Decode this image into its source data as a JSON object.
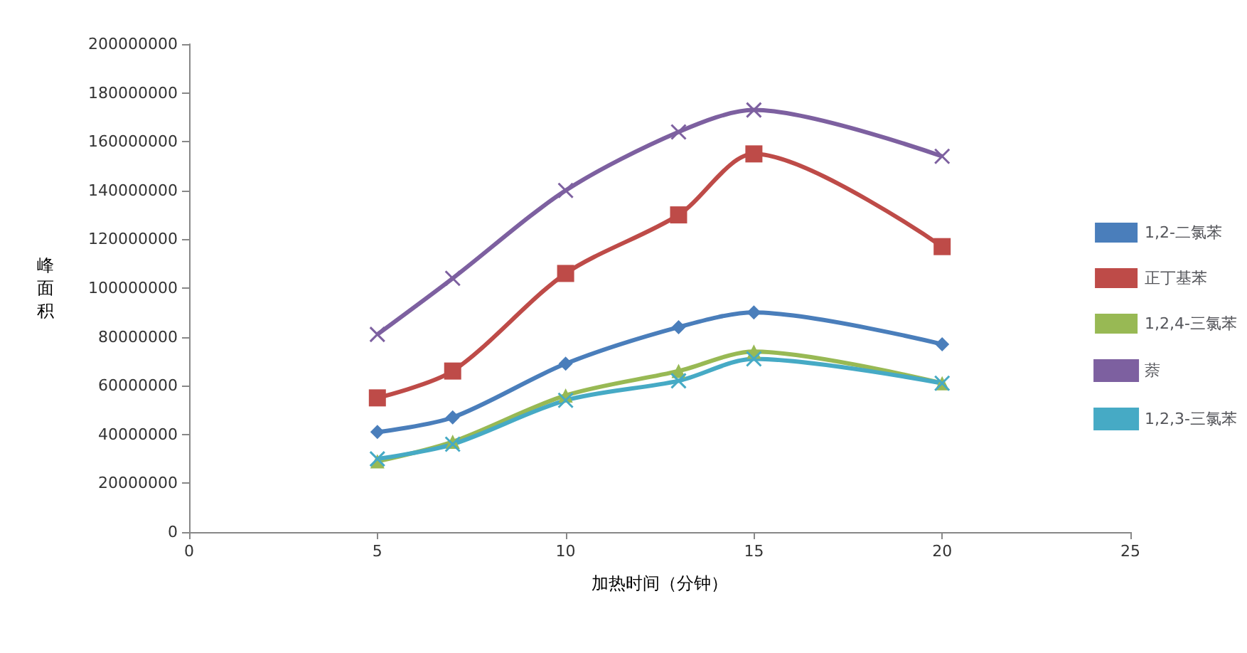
{
  "chart_data": {
    "type": "line",
    "xlabel": "加热时间（分钟）",
    "ylabel": "峰面积",
    "x": [
      5,
      7,
      10,
      13,
      15,
      20
    ],
    "xlim": [
      0,
      25
    ],
    "xticks": [
      0,
      5,
      10,
      15,
      20,
      25
    ],
    "ylim": [
      0,
      200000000
    ],
    "yticks": [
      0,
      20000000,
      40000000,
      60000000,
      80000000,
      100000000,
      120000000,
      140000000,
      160000000,
      180000000,
      200000000
    ],
    "grid": false,
    "legend": "right",
    "series": [
      {
        "name": "1,2-二氯苯",
        "color": "#4a7ebb",
        "marker": "diamond",
        "values": [
          41000000,
          47000000,
          69000000,
          84000000,
          90000000,
          77000000
        ]
      },
      {
        "name": "正丁基苯",
        "color": "#be4b48",
        "marker": "square",
        "values": [
          55000000,
          66000000,
          106000000,
          130000000,
          155000000,
          117000000
        ]
      },
      {
        "name": "1,2,4-三氯苯",
        "color": "#98b954",
        "marker": "triangle",
        "values": [
          29000000,
          37000000,
          56000000,
          66000000,
          74000000,
          61000000
        ]
      },
      {
        "name": "萘",
        "color": "#7d60a0",
        "marker": "cross",
        "values": [
          81000000,
          104000000,
          140000000,
          164000000,
          173000000,
          154000000
        ]
      },
      {
        "name": "1,2,3-三氯苯",
        "color": "#46aac5",
        "marker": "cross",
        "values": [
          30000000,
          36000000,
          54000000,
          62000000,
          71000000,
          61000000
        ]
      }
    ]
  }
}
